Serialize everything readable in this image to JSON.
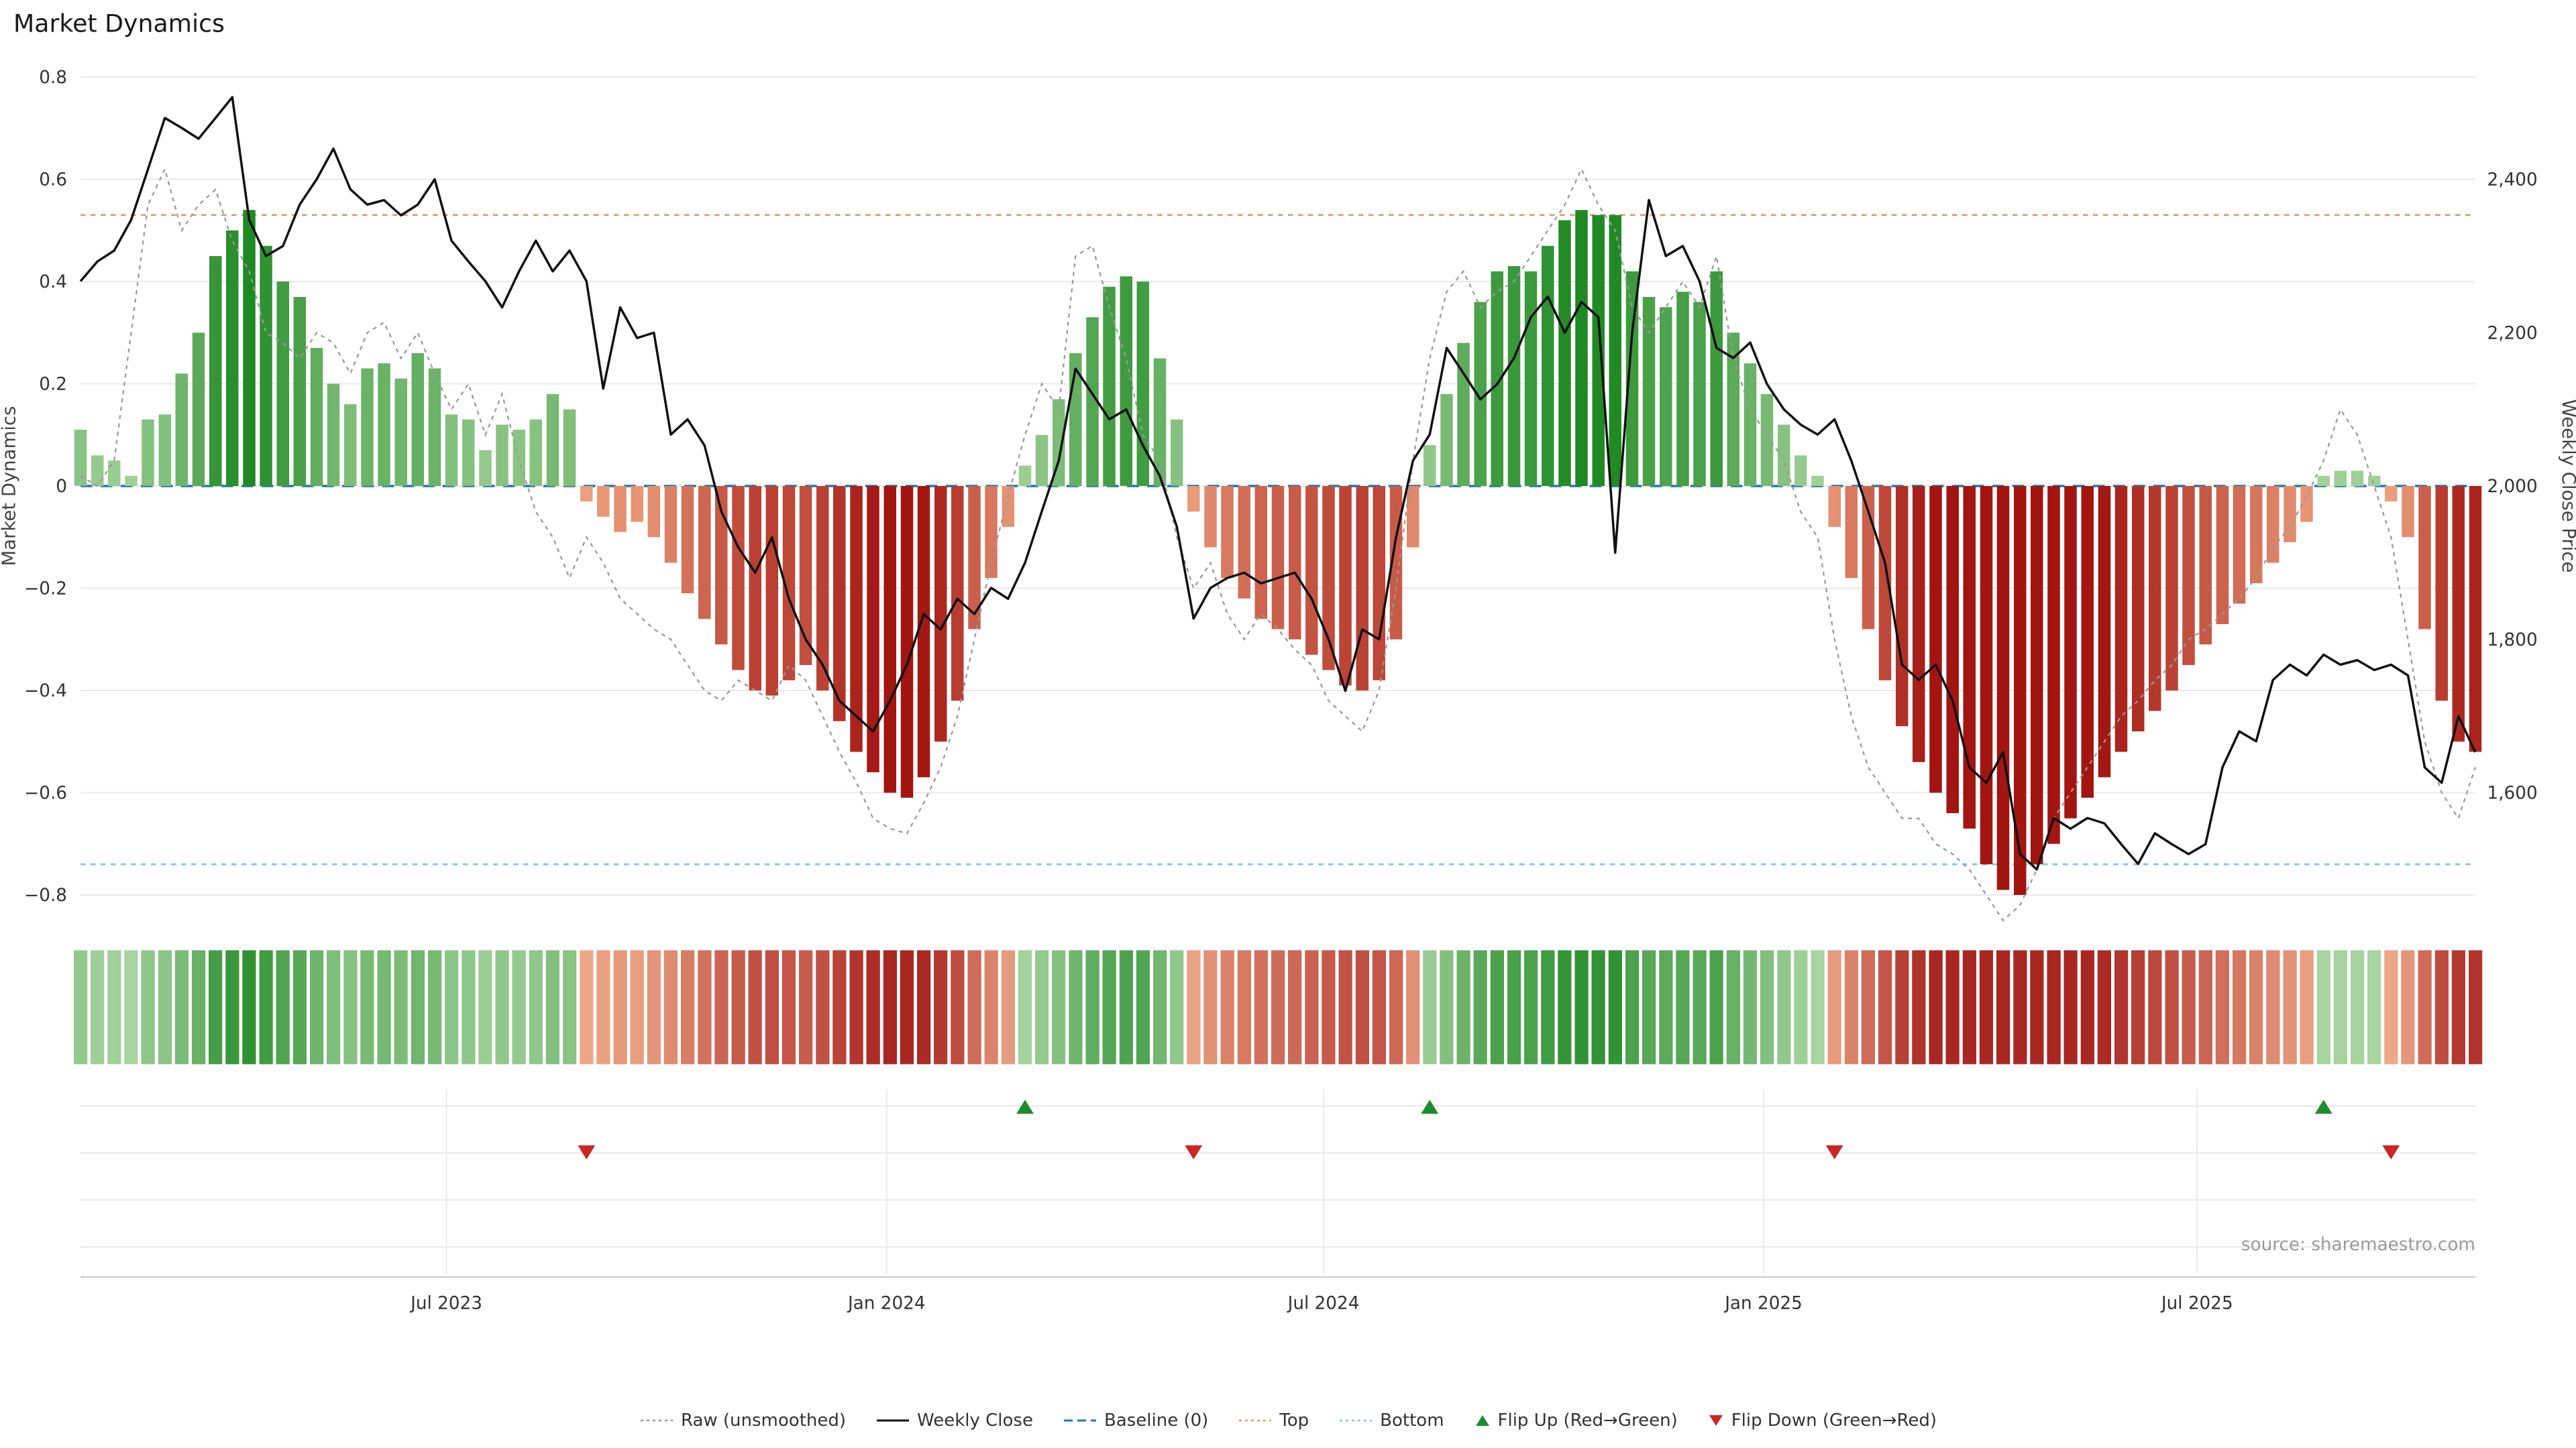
{
  "title": "Market Dynamics",
  "source": "source: sharemaestro.com",
  "colors": {
    "bar_positive_dark": "#15831a",
    "bar_positive_light": "#a5d39c",
    "bar_negative_dark": "#a21510",
    "bar_negative_light": "#f0a683",
    "weekly_close": "#111111",
    "raw_line": "#999999",
    "baseline": "#1f77b4",
    "top_line": "#e09a6a",
    "bottom_line": "#7ec8e0",
    "flip_up": "#1e8c2e",
    "flip_down": "#cc2522",
    "grid": "#e9e9e9",
    "axis_text": "#333333"
  },
  "chart_data": {
    "type": "combo: bar (market dynamics) + line (weekly close) + dotted line (raw) + heatmap strip + flip markers",
    "title": "Market Dynamics",
    "ylabel_left": "Market Dynamics",
    "ylabel_right": "Weekly Close Price",
    "ylim_left": [
      -0.82,
      0.82
    ],
    "ylim_right": [
      1460,
      2545
    ],
    "grid": true,
    "legend_position": "bottom-center",
    "baseline": 0,
    "top_threshold": 0.53,
    "bottom_threshold": -0.74,
    "x_unit": "weeks",
    "weeks_count": 143,
    "x_ticks": [
      {
        "label": "Jul 2023",
        "week": 21.7
      },
      {
        "label": "Jan 2024",
        "week": 47.8
      },
      {
        "label": "Jul 2024",
        "week": 73.7
      },
      {
        "label": "Jan 2025",
        "week": 99.8
      },
      {
        "label": "Jul 2025",
        "week": 125.5
      }
    ],
    "y_left_ticks": [
      {
        "label": "0.8",
        "value": 0.8
      },
      {
        "label": "0.6",
        "value": 0.6
      },
      {
        "label": "0.4",
        "value": 0.4
      },
      {
        "label": "0.2",
        "value": 0.2
      },
      {
        "label": "0",
        "value": 0
      },
      {
        "label": "−0.2",
        "value": -0.2
      },
      {
        "label": "−0.4",
        "value": -0.4
      },
      {
        "label": "−0.6",
        "value": -0.6
      },
      {
        "label": "−0.8",
        "value": -0.8
      }
    ],
    "y_right_ticks": [
      {
        "label": "2,400",
        "value": 2400
      },
      {
        "label": "2,200",
        "value": 2200
      },
      {
        "label": "2,000",
        "value": 2000
      },
      {
        "label": "1,800",
        "value": 1800
      },
      {
        "label": "1,600",
        "value": 1600
      }
    ],
    "series": {
      "smoothed": [
        0.11,
        0.06,
        0.05,
        0.02,
        0.13,
        0.14,
        0.22,
        0.3,
        0.45,
        0.5,
        0.54,
        0.47,
        0.4,
        0.37,
        0.27,
        0.2,
        0.16,
        0.23,
        0.24,
        0.21,
        0.26,
        0.23,
        0.14,
        0.13,
        0.07,
        0.12,
        0.11,
        0.13,
        0.18,
        0.15,
        -0.03,
        -0.06,
        -0.09,
        -0.07,
        -0.1,
        -0.15,
        -0.21,
        -0.26,
        -0.31,
        -0.36,
        -0.4,
        -0.41,
        -0.38,
        -0.35,
        -0.4,
        -0.46,
        -0.52,
        -0.56,
        -0.6,
        -0.61,
        -0.57,
        -0.5,
        -0.42,
        -0.28,
        -0.18,
        -0.08,
        0.04,
        0.1,
        0.17,
        0.26,
        0.33,
        0.39,
        0.41,
        0.4,
        0.25,
        0.13,
        -0.05,
        -0.12,
        -0.18,
        -0.22,
        -0.26,
        -0.28,
        -0.3,
        -0.33,
        -0.36,
        -0.39,
        -0.4,
        -0.38,
        -0.3,
        -0.12,
        0.08,
        0.18,
        0.28,
        0.36,
        0.42,
        0.43,
        0.42,
        0.47,
        0.52,
        0.54,
        0.53,
        0.53,
        0.42,
        0.37,
        0.35,
        0.38,
        0.36,
        0.42,
        0.3,
        0.24,
        0.18,
        0.12,
        0.06,
        0.02,
        -0.08,
        -0.18,
        -0.28,
        -0.38,
        -0.47,
        -0.54,
        -0.6,
        -0.64,
        -0.67,
        -0.74,
        -0.79,
        -0.8,
        -0.74,
        -0.7,
        -0.65,
        -0.61,
        -0.57,
        -0.52,
        -0.48,
        -0.44,
        -0.4,
        -0.35,
        -0.31,
        -0.27,
        -0.23,
        -0.19,
        -0.15,
        -0.11,
        -0.07,
        0.02,
        0.03,
        0.03,
        0.02,
        -0.03,
        -0.1,
        -0.28,
        -0.42,
        -0.5,
        -0.52
      ],
      "raw": [
        0.02,
        0.0,
        0.05,
        0.3,
        0.55,
        0.62,
        0.5,
        0.55,
        0.58,
        0.48,
        0.42,
        0.3,
        0.28,
        0.25,
        0.3,
        0.28,
        0.22,
        0.3,
        0.32,
        0.25,
        0.3,
        0.22,
        0.15,
        0.2,
        0.1,
        0.18,
        0.05,
        -0.05,
        -0.1,
        -0.18,
        -0.1,
        -0.15,
        -0.22,
        -0.25,
        -0.28,
        -0.3,
        -0.35,
        -0.4,
        -0.42,
        -0.38,
        -0.4,
        -0.42,
        -0.35,
        -0.38,
        -0.45,
        -0.52,
        -0.58,
        -0.65,
        -0.67,
        -0.68,
        -0.62,
        -0.55,
        -0.45,
        -0.3,
        -0.15,
        -0.02,
        0.1,
        0.2,
        0.15,
        0.45,
        0.47,
        0.35,
        0.25,
        0.1,
        0.05,
        -0.1,
        -0.2,
        -0.15,
        -0.25,
        -0.3,
        -0.25,
        -0.28,
        -0.32,
        -0.35,
        -0.42,
        -0.45,
        -0.48,
        -0.4,
        -0.2,
        0.05,
        0.25,
        0.38,
        0.42,
        0.35,
        0.38,
        0.4,
        0.45,
        0.5,
        0.55,
        0.62,
        0.55,
        0.5,
        0.35,
        0.3,
        0.35,
        0.4,
        0.35,
        0.45,
        0.25,
        0.15,
        0.1,
        0.05,
        -0.05,
        -0.1,
        -0.3,
        -0.45,
        -0.55,
        -0.6,
        -0.65,
        -0.65,
        -0.7,
        -0.72,
        -0.75,
        -0.8,
        -0.85,
        -0.82,
        -0.75,
        -0.65,
        -0.6,
        -0.55,
        -0.5,
        -0.45,
        -0.42,
        -0.38,
        -0.35,
        -0.3,
        -0.28,
        -0.25,
        -0.22,
        -0.18,
        -0.12,
        -0.08,
        -0.02,
        0.05,
        0.15,
        0.1,
        0.0,
        -0.1,
        -0.3,
        -0.5,
        -0.6,
        -0.65,
        -0.55
      ],
      "weekly_close": [
        2267,
        2293,
        2307,
        2347,
        2413,
        2480,
        2467,
        2453,
        2480,
        2507,
        2347,
        2300,
        2313,
        2367,
        2400,
        2440,
        2387,
        2367,
        2373,
        2353,
        2367,
        2400,
        2320,
        2293,
        2267,
        2233,
        2280,
        2320,
        2280,
        2307,
        2267,
        2127,
        2233,
        2193,
        2200,
        2067,
        2087,
        2053,
        1967,
        1920,
        1887,
        1933,
        1853,
        1800,
        1767,
        1720,
        1700,
        1680,
        1720,
        1767,
        1833,
        1813,
        1853,
        1833,
        1867,
        1853,
        1900,
        1967,
        2033,
        2153,
        2120,
        2087,
        2100,
        2053,
        2013,
        1947,
        1827,
        1867,
        1880,
        1887,
        1873,
        1880,
        1887,
        1853,
        1800,
        1733,
        1813,
        1800,
        1933,
        2033,
        2067,
        2180,
        2147,
        2113,
        2133,
        2167,
        2220,
        2247,
        2200,
        2240,
        2220,
        1913,
        2200,
        2373,
        2300,
        2313,
        2267,
        2180,
        2167,
        2187,
        2133,
        2100,
        2080,
        2067,
        2087,
        2033,
        1967,
        1900,
        1767,
        1747,
        1767,
        1720,
        1633,
        1613,
        1653,
        1520,
        1500,
        1567,
        1553,
        1567,
        1560,
        1533,
        1507,
        1547,
        1533,
        1520,
        1533,
        1633,
        1680,
        1667,
        1747,
        1767,
        1753,
        1780,
        1767,
        1773,
        1760,
        1767,
        1753,
        1633,
        1613,
        1700,
        1653
      ]
    },
    "flip_up_weeks": [
      56,
      80,
      133
    ],
    "flip_down_weeks": [
      30,
      66,
      104,
      137
    ]
  },
  "legend": {
    "items": [
      {
        "label": "Raw (unsmoothed)",
        "type": "dotted-line",
        "color": "#999999"
      },
      {
        "label": "Weekly Close",
        "type": "solid-line",
        "color": "#111111"
      },
      {
        "label": "Baseline (0)",
        "type": "dashed-line",
        "color": "#1f77b4"
      },
      {
        "label": "Top",
        "type": "dotted-line",
        "color": "#e09a6a"
      },
      {
        "label": "Bottom",
        "type": "dotted-line",
        "color": "#7ec8e0"
      },
      {
        "label": "Flip Up (Red→Green)",
        "type": "triangle-up",
        "color": "#1e8c2e"
      },
      {
        "label": "Flip Down (Green→Red)",
        "type": "triangle-down",
        "color": "#cc2522"
      }
    ]
  }
}
